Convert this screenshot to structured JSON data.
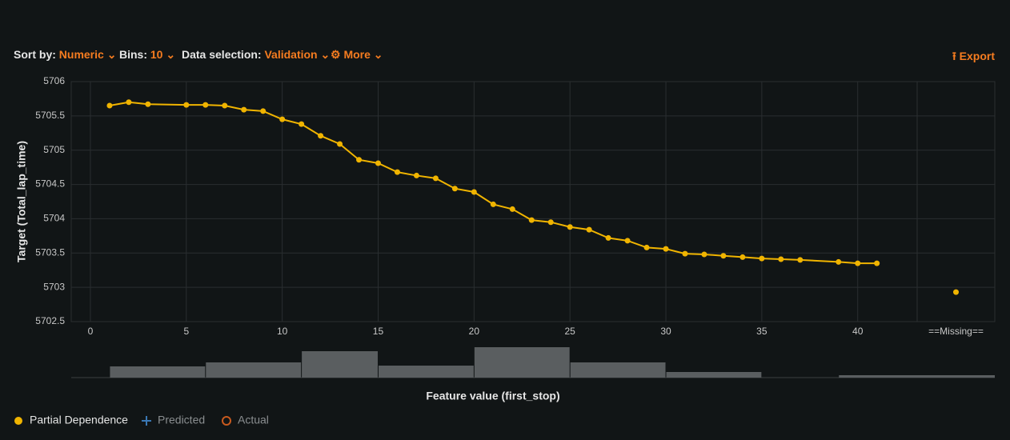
{
  "toolbar": {
    "sort_label": "Sort by:",
    "sort_value": "Numeric",
    "bins_label": "Bins:",
    "bins_value": "10",
    "data_label": "Data selection:",
    "data_value": "Validation",
    "more": "More",
    "export": "Export"
  },
  "chart_data": {
    "type": "line",
    "x_label": "Feature value (first_stop)",
    "y_label": "Target (Total_lap_time)",
    "x": [
      1,
      2,
      3,
      5,
      6,
      7,
      8,
      9,
      10,
      11,
      12,
      13,
      14,
      15,
      16,
      17,
      18,
      19,
      20,
      21,
      22,
      23,
      24,
      25,
      26,
      27,
      28,
      29,
      30,
      31,
      32,
      33,
      34,
      35,
      36,
      37,
      39,
      40,
      41
    ],
    "series": [
      {
        "name": "Partial Dependence",
        "color": "#f0b400",
        "values": [
          5705.65,
          5705.7,
          5705.67,
          5705.66,
          5705.66,
          5705.65,
          5705.59,
          5705.57,
          5705.45,
          5705.38,
          5705.21,
          5705.09,
          5704.86,
          5704.81,
          5704.68,
          5704.63,
          5704.59,
          5704.44,
          5704.39,
          5704.21,
          5704.14,
          5703.98,
          5703.95,
          5703.88,
          5703.84,
          5703.72,
          5703.68,
          5703.58,
          5703.56,
          5703.49,
          5703.48,
          5703.46,
          5703.44,
          5703.42,
          5703.41,
          5703.4,
          5703.37,
          5703.35,
          5703.35
        ]
      },
      {
        "name": "Predicted",
        "color": "#3a78b5"
      },
      {
        "name": "Actual",
        "color": "#c85a1e"
      }
    ],
    "missing": {
      "label": "==Missing==",
      "value": 5702.93,
      "count": 3
    },
    "xlim": [
      -1,
      43.1
    ],
    "xticks": [
      0,
      5,
      10,
      15,
      20,
      25,
      30,
      35,
      40
    ],
    "ylim": [
      5702.5,
      5706
    ],
    "yticks": [
      5702.5,
      5703,
      5703.5,
      5704,
      5704.5,
      5705,
      5705.5,
      5706
    ],
    "grid": true,
    "hist_bins": [
      1,
      6,
      11,
      15,
      20,
      25,
      30,
      35,
      39,
      43
    ],
    "hist_counts": [
      14,
      19,
      33,
      15,
      38,
      19,
      7,
      0,
      3
    ],
    "hist_color": "#5a5e60"
  }
}
